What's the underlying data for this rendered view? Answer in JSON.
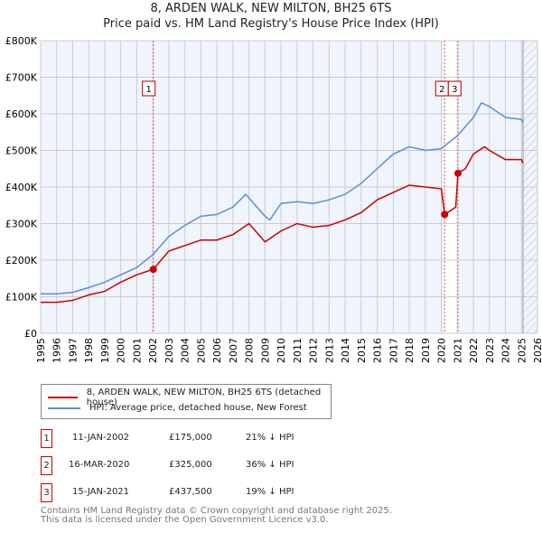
{
  "chart_data": {
    "type": "line",
    "title": "8, ARDEN WALK, NEW MILTON, BH25 6TS",
    "subtitle": "Price paid vs. HM Land Registry's House Price Index (HPI)",
    "xlim": [
      1995,
      2026
    ],
    "ylim": [
      0,
      800000
    ],
    "x_ticks": [
      "1995",
      "1996",
      "1997",
      "1998",
      "1999",
      "2000",
      "2001",
      "2002",
      "2003",
      "2004",
      "2005",
      "2006",
      "2007",
      "2008",
      "2009",
      "2010",
      "2011",
      "2012",
      "2013",
      "2014",
      "2015",
      "2016",
      "2017",
      "2018",
      "2019",
      "2020",
      "2021",
      "2022",
      "2023",
      "2024",
      "2025",
      "2026"
    ],
    "y_ticks": [
      {
        "v": 0,
        "label": "£0"
      },
      {
        "v": 100000,
        "label": "£100K"
      },
      {
        "v": 200000,
        "label": "£200K"
      },
      {
        "v": 300000,
        "label": "£300K"
      },
      {
        "v": 400000,
        "label": "£400K"
      },
      {
        "v": 500000,
        "label": "£500K"
      },
      {
        "v": 600000,
        "label": "£600K"
      },
      {
        "v": 700000,
        "label": "£700K"
      },
      {
        "v": 800000,
        "label": "£800K"
      }
    ],
    "grid": true,
    "series": [
      {
        "name": "8, ARDEN WALK, NEW MILTON, BH25 6TS (detached house)",
        "color": "#cc0000",
        "x": [
          1995,
          1996,
          1997,
          1998,
          1999,
          2000,
          2001,
          2002.03,
          2003,
          2004,
          2005,
          2006,
          2007,
          2008,
          2009,
          2010,
          2011,
          2012,
          2013,
          2014,
          2015,
          2016,
          2017,
          2018,
          2019,
          2020,
          2020.21,
          2020.9,
          2021.04,
          2021.5,
          2022,
          2022.7,
          2023,
          2024,
          2025,
          2025.1
        ],
        "y": [
          85000,
          85000,
          90000,
          105000,
          115000,
          140000,
          160000,
          175000,
          225000,
          240000,
          255000,
          255000,
          270000,
          300000,
          250000,
          280000,
          300000,
          290000,
          295000,
          310000,
          330000,
          365000,
          385000,
          405000,
          400000,
          395000,
          325000,
          345000,
          437500,
          450000,
          490000,
          510000,
          500000,
          475000,
          475000,
          465000
        ]
      },
      {
        "name": "HPI: Average price, detached house, New Forest",
        "color": "#5b8fd4",
        "x": [
          1995,
          1996,
          1997,
          1998,
          1999,
          2000,
          2001,
          2002,
          2003,
          2004,
          2005,
          2006,
          2007,
          2007.8,
          2009,
          2009.3,
          2010,
          2011,
          2012,
          2013,
          2014,
          2015,
          2016,
          2017,
          2018,
          2019,
          2020,
          2021,
          2022,
          2022.5,
          2023,
          2024,
          2025,
          2025.1
        ],
        "y": [
          108000,
          108000,
          112000,
          125000,
          140000,
          160000,
          180000,
          215000,
          265000,
          295000,
          320000,
          325000,
          345000,
          380000,
          320000,
          310000,
          355000,
          360000,
          355000,
          365000,
          380000,
          410000,
          450000,
          490000,
          510000,
          500000,
          505000,
          540000,
          590000,
          630000,
          620000,
          590000,
          585000,
          575000
        ]
      }
    ],
    "sales": [
      {
        "id": "1",
        "x": 2002.03,
        "y": 175000,
        "date": "11-JAN-2002",
        "price": "£175,000",
        "hpi": "21% ↓ HPI"
      },
      {
        "id": "2",
        "x": 2020.21,
        "y": 325000,
        "date": "16-MAR-2020",
        "price": "£325,000",
        "hpi": "36% ↓ HPI"
      },
      {
        "id": "3",
        "x": 2021.04,
        "y": 437500,
        "date": "15-JAN-2021",
        "price": "£437,500",
        "hpi": "19% ↓ HPI"
      }
    ],
    "projection_start": 2025.1,
    "legend_placement": "below"
  },
  "footer": {
    "line1": "Contains HM Land Registry data © Crown copyright and database right 2025.",
    "line2": "This data is licensed under the Open Government Licence v3.0."
  }
}
